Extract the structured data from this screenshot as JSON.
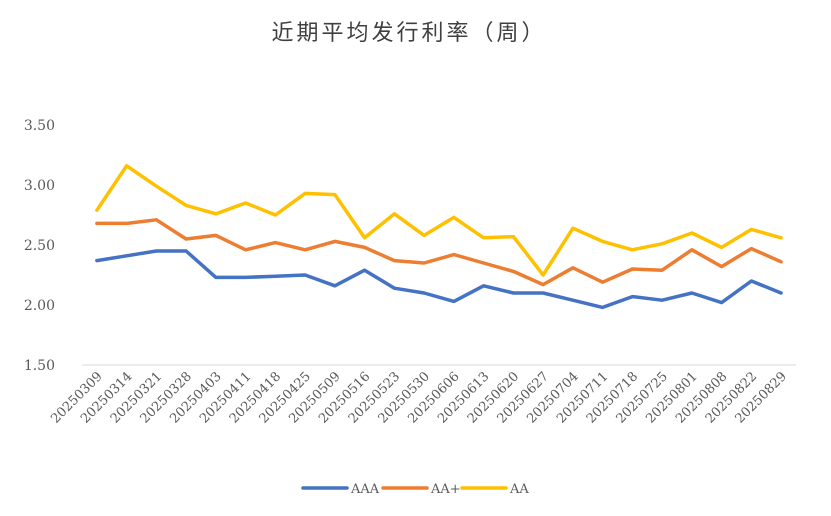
{
  "chart_data": {
    "type": "line",
    "title": "近期平均发行利率（周）",
    "xlabel": "",
    "ylabel": "",
    "ylim": [
      1.5,
      3.5
    ],
    "yticks": [
      "1.50",
      "2.00",
      "2.50",
      "3.00",
      "3.50"
    ],
    "grid": false,
    "legend_position": "bottom",
    "categories": [
      "20250309",
      "20250314",
      "20250321",
      "20250328",
      "20250403",
      "20250411",
      "20250418",
      "20250425",
      "20250509",
      "20250516",
      "20250523",
      "20250530",
      "20250606",
      "20250613",
      "20250620",
      "20250627",
      "20250704",
      "20250711",
      "20250718",
      "20250725",
      "20250801",
      "20250808",
      "20250822",
      "20250829"
    ],
    "xtick_labels": [
      "20250309",
      "20250314",
      "20250321",
      "20250328",
      "20250403",
      "20250411",
      "20250418",
      "20250425",
      "20250509",
      "20250516",
      "20250523",
      "20250530",
      "20250606",
      "20250613",
      "20250620",
      "20250627",
      "20250704",
      "20250711",
      "20250718",
      "20250725",
      "20250801",
      "20250808",
      "20250822",
      "20250829"
    ],
    "series": [
      {
        "name": "AAA",
        "color": "#4472C4",
        "values": [
          2.37,
          2.41,
          2.45,
          2.45,
          2.23,
          2.23,
          2.24,
          2.25,
          2.16,
          2.29,
          2.14,
          2.1,
          2.03,
          2.16,
          2.1,
          2.1,
          2.04,
          1.98,
          2.07,
          2.04,
          2.1,
          2.02,
          2.2,
          2.1
        ]
      },
      {
        "name": "AA+",
        "color": "#ED7D31",
        "values": [
          2.68,
          2.68,
          2.71,
          2.55,
          2.58,
          2.46,
          2.52,
          2.46,
          2.53,
          2.48,
          2.37,
          2.35,
          2.42,
          2.35,
          2.28,
          2.17,
          2.31,
          2.19,
          2.3,
          2.29,
          2.46,
          2.32,
          2.47,
          2.36
        ]
      },
      {
        "name": "AA",
        "color": "#FFC000",
        "values": [
          2.79,
          3.16,
          2.99,
          2.83,
          2.76,
          2.85,
          2.75,
          2.93,
          2.92,
          2.56,
          2.76,
          2.58,
          2.73,
          2.56,
          2.57,
          2.25,
          2.64,
          2.53,
          2.46,
          2.51,
          2.6,
          2.48,
          2.63,
          2.56
        ]
      }
    ]
  }
}
